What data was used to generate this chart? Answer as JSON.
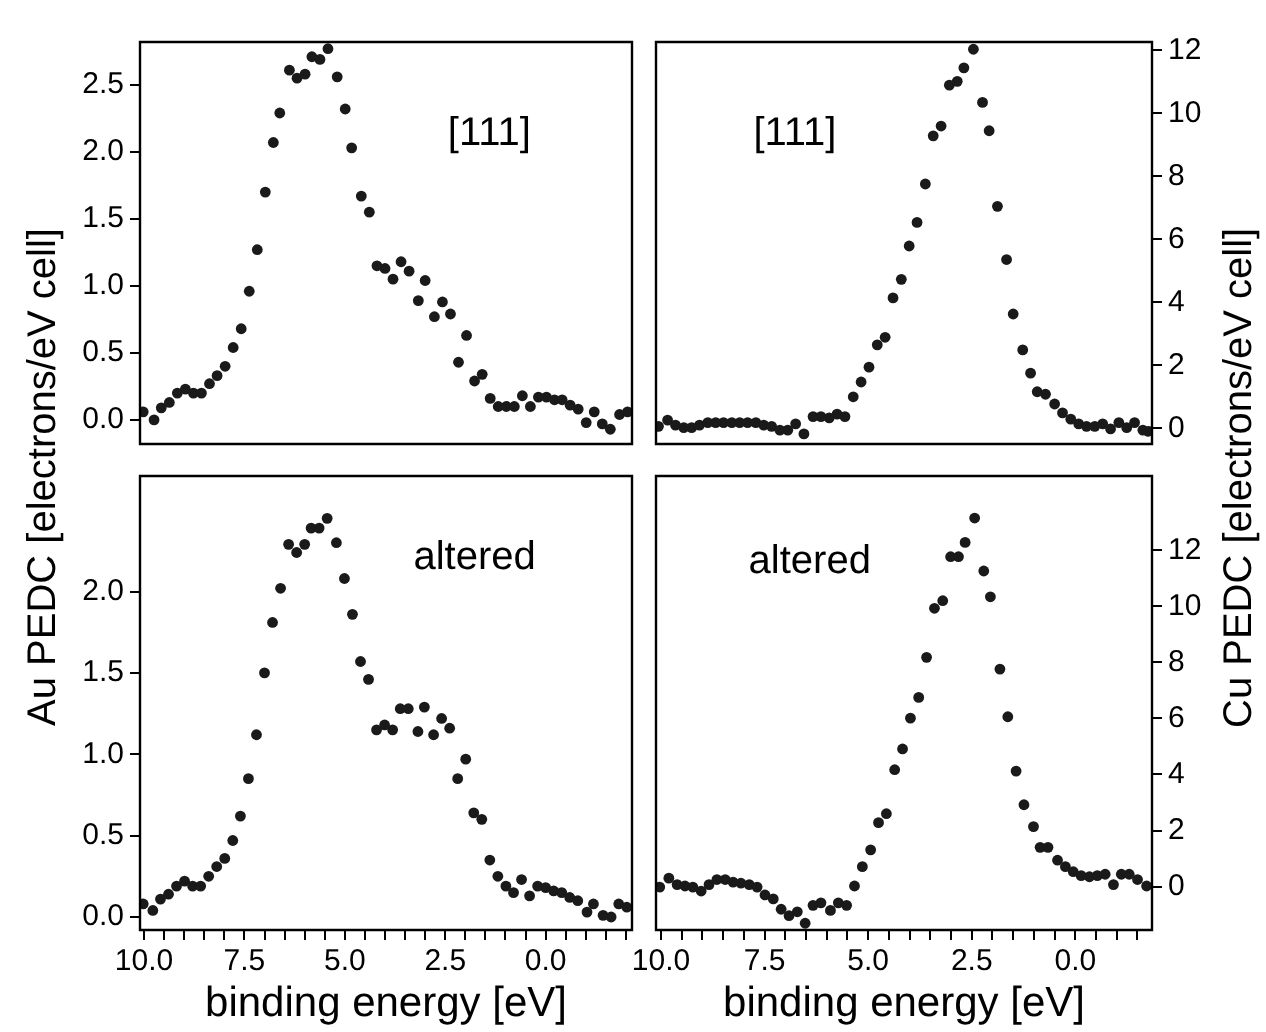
{
  "chart_data": [
    {
      "type": "scatter",
      "ylabel": "Au PEDC [electrons/eV cell]",
      "annotations": [
        "[111]"
      ],
      "xlim": [
        10.1,
        -2.15
      ],
      "ylim": [
        -0.18,
        2.82
      ],
      "yticks": [
        {
          "value": 0,
          "label": "0.0"
        },
        {
          "value": 0.5,
          "label": "0.5"
        },
        {
          "value": 1,
          "label": "1.0"
        },
        {
          "value": 1.5,
          "label": "1.5"
        },
        {
          "value": 2,
          "label": "2.0"
        },
        {
          "value": 2.5,
          "label": "2.5"
        }
      ],
      "tick_labels": "y",
      "marker": "circle",
      "series": [
        {
          "color": "#1a1a1a",
          "x": [
            10.02,
            9.75,
            9.57,
            9.37,
            9.17,
            8.97,
            8.77,
            8.57,
            8.37,
            8.18,
            7.98,
            7.78,
            7.58,
            7.38,
            7.18,
            6.98,
            6.78,
            6.62,
            6.38,
            6.19,
            5.99,
            5.82,
            5.62,
            5.42,
            5.19,
            4.99,
            4.83,
            4.59,
            4.39,
            4.2,
            4.0,
            3.8,
            3.6,
            3.4,
            3.17,
            3.0,
            2.77,
            2.57,
            2.37,
            2.17,
            1.97,
            1.77,
            1.58,
            1.38,
            1.18,
            0.98,
            0.78,
            0.58,
            0.38,
            0.18,
            -0.02,
            -0.22,
            -0.41,
            -0.61,
            -0.81,
            -1.01,
            -1.21,
            -1.41,
            -1.61,
            -1.84,
            -2.04
          ],
          "values": [
            0.06,
            0.0,
            0.09,
            0.13,
            0.2,
            0.23,
            0.2,
            0.2,
            0.27,
            0.33,
            0.4,
            0.54,
            0.68,
            0.96,
            1.27,
            1.7,
            2.07,
            2.29,
            2.61,
            2.55,
            2.58,
            2.71,
            2.69,
            2.77,
            2.56,
            2.32,
            2.03,
            1.67,
            1.55,
            1.15,
            1.13,
            1.05,
            1.18,
            1.11,
            0.89,
            1.04,
            0.77,
            0.88,
            0.79,
            0.43,
            0.63,
            0.29,
            0.34,
            0.16,
            0.1,
            0.1,
            0.1,
            0.18,
            0.1,
            0.17,
            0.17,
            0.15,
            0.15,
            0.11,
            0.08,
            -0.02,
            0.06,
            -0.03,
            -0.07,
            0.04,
            0.06
          ]
        }
      ]
    },
    {
      "type": "scatter",
      "ylabel": "Cu PEDC [electrons/eV cell]",
      "annotations": [
        "[111]"
      ],
      "xlim": [
        10.12,
        -1.85
      ],
      "ylim": [
        -0.5,
        12.27
      ],
      "yticks": [
        0,
        2,
        4,
        6,
        8,
        10,
        12
      ],
      "tick_labels": "y",
      "marker": "circle",
      "series": [
        {
          "color": "#1a1a1a",
          "x": [
            10.06,
            9.84,
            9.65,
            9.45,
            9.26,
            9.07,
            8.87,
            8.68,
            8.49,
            8.29,
            8.1,
            7.91,
            7.71,
            7.52,
            7.33,
            7.13,
            6.94,
            6.75,
            6.55,
            6.33,
            6.14,
            5.94,
            5.75,
            5.56,
            5.36,
            5.17,
            4.98,
            4.78,
            4.59,
            4.4,
            4.2,
            4.01,
            3.82,
            3.62,
            3.43,
            3.24,
            3.04,
            2.85,
            2.69,
            2.46,
            2.24,
            2.08,
            1.88,
            1.66,
            1.5,
            1.27,
            1.08,
            0.92,
            0.72,
            0.5,
            0.31,
            0.11,
            -0.08,
            -0.27,
            -0.47,
            -0.66,
            -0.85,
            -1.05,
            -1.24,
            -1.43,
            -1.63,
            -1.76
          ],
          "values": [
            0.06,
            0.26,
            0.1,
            0.02,
            0.02,
            0.1,
            0.18,
            0.18,
            0.18,
            0.18,
            0.18,
            0.18,
            0.18,
            0.1,
            0.06,
            -0.06,
            -0.06,
            0.14,
            -0.18,
            0.37,
            0.37,
            0.33,
            0.45,
            0.37,
            1.0,
            1.47,
            1.94,
            2.65,
            2.89,
            4.14,
            4.73,
            5.79,
            6.54,
            7.76,
            9.29,
            9.6,
            10.9,
            11.02,
            11.45,
            12.04,
            10.35,
            9.45,
            7.05,
            5.36,
            3.63,
            2.49,
            1.75,
            1.16,
            1.08,
            0.77,
            0.49,
            0.29,
            0.14,
            0.06,
            0.06,
            0.14,
            -0.02,
            0.18,
            0.02,
            0.18,
            -0.06,
            -0.1
          ]
        }
      ]
    },
    {
      "type": "scatter",
      "xlabel": "binding energy [eV]",
      "annotations": [
        "altered"
      ],
      "xlim": [
        10.1,
        -2.15
      ],
      "xticks": [
        {
          "value": 10,
          "label": "10.0"
        },
        {
          "value": 9.5,
          "label": null
        },
        {
          "value": 9,
          "label": null
        },
        {
          "value": 8.5,
          "label": null
        },
        {
          "value": 8,
          "label": null
        },
        {
          "value": 7.5,
          "label": "7.5"
        },
        {
          "value": 7,
          "label": null
        },
        {
          "value": 6.5,
          "label": null
        },
        {
          "value": 6,
          "label": null
        },
        {
          "value": 5.5,
          "label": null
        },
        {
          "value": 5,
          "label": "5.0"
        },
        {
          "value": 4.5,
          "label": null
        },
        {
          "value": 4,
          "label": null
        },
        {
          "value": 3.5,
          "label": null
        },
        {
          "value": 3,
          "label": null
        },
        {
          "value": 2.5,
          "label": "2.5"
        },
        {
          "value": 2,
          "label": null
        },
        {
          "value": 1.5,
          "label": null
        },
        {
          "value": 1,
          "label": null
        },
        {
          "value": 0.5,
          "label": null
        },
        {
          "value": 0,
          "label": "0.0"
        },
        {
          "value": -0.5,
          "label": null
        },
        {
          "value": -1,
          "label": null
        },
        {
          "value": -1.5,
          "label": null
        },
        {
          "value": -2,
          "label": null
        }
      ],
      "ylim": [
        -0.08,
        2.71
      ],
      "yticks": [
        {
          "value": 0,
          "label": "0.0"
        },
        {
          "value": 0.5,
          "label": "0.5"
        },
        {
          "value": 1,
          "label": "1.0"
        },
        {
          "value": 1.5,
          "label": "1.5"
        },
        {
          "value": 2,
          "label": "2.0"
        }
      ],
      "marker": "circle",
      "series": [
        {
          "color": "#1a1a1a",
          "x": [
            10.02,
            9.78,
            9.59,
            9.39,
            9.19,
            8.99,
            8.79,
            8.59,
            8.39,
            8.19,
            7.99,
            7.79,
            7.6,
            7.4,
            7.2,
            7.0,
            6.8,
            6.6,
            6.4,
            6.2,
            6.0,
            5.84,
            5.64,
            5.44,
            5.21,
            5.01,
            4.81,
            4.61,
            4.41,
            4.21,
            4.01,
            3.81,
            3.62,
            3.42,
            3.18,
            3.02,
            2.79,
            2.59,
            2.39,
            2.19,
            1.99,
            1.79,
            1.59,
            1.39,
            1.19,
            0.99,
            0.8,
            0.6,
            0.4,
            0.2,
            0.0,
            -0.2,
            -0.4,
            -0.6,
            -0.8,
            -1.03,
            -1.19,
            -1.43,
            -1.63,
            -1.82,
            -2.02
          ],
          "values": [
            0.08,
            0.04,
            0.11,
            0.14,
            0.19,
            0.22,
            0.19,
            0.19,
            0.25,
            0.31,
            0.36,
            0.47,
            0.62,
            0.85,
            1.12,
            1.5,
            1.81,
            2.02,
            2.29,
            2.24,
            2.29,
            2.39,
            2.39,
            2.45,
            2.3,
            2.08,
            1.86,
            1.57,
            1.46,
            1.15,
            1.18,
            1.15,
            1.28,
            1.28,
            1.14,
            1.29,
            1.12,
            1.22,
            1.16,
            0.85,
            0.97,
            0.64,
            0.6,
            0.35,
            0.25,
            0.19,
            0.15,
            0.23,
            0.13,
            0.19,
            0.18,
            0.16,
            0.15,
            0.12,
            0.1,
            0.03,
            0.08,
            0.01,
            0.0,
            0.08,
            0.06
          ]
        }
      ]
    },
    {
      "type": "scatter",
      "xlabel": "binding energy [eV]",
      "annotations": [
        "altered"
      ],
      "xlim": [
        10.12,
        -1.85
      ],
      "xticks": [
        {
          "value": 10,
          "label": "10.0"
        },
        {
          "value": 9.5,
          "label": null
        },
        {
          "value": 9,
          "label": null
        },
        {
          "value": 8.5,
          "label": null
        },
        {
          "value": 8,
          "label": null
        },
        {
          "value": 7.5,
          "label": "7.5"
        },
        {
          "value": 7,
          "label": null
        },
        {
          "value": 6.5,
          "label": null
        },
        {
          "value": 6,
          "label": null
        },
        {
          "value": 5.5,
          "label": null
        },
        {
          "value": 5,
          "label": "5.0"
        },
        {
          "value": 4.5,
          "label": null
        },
        {
          "value": 4,
          "label": null
        },
        {
          "value": 3.5,
          "label": null
        },
        {
          "value": 3,
          "label": null
        },
        {
          "value": 2.5,
          "label": "2.5"
        },
        {
          "value": 2,
          "label": null
        },
        {
          "value": 1.5,
          "label": null
        },
        {
          "value": 1,
          "label": null
        },
        {
          "value": 0.5,
          "label": null
        },
        {
          "value": 0,
          "label": "0.0"
        },
        {
          "value": -0.5,
          "label": null
        },
        {
          "value": -1,
          "label": null
        },
        {
          "value": -1.5,
          "label": null
        }
      ],
      "ylim": [
        -1.55,
        14.65
      ],
      "yticks": [
        0,
        2,
        4,
        6,
        8,
        10,
        12
      ],
      "marker": "circle",
      "series": [
        {
          "color": "#1a1a1a",
          "x": [
            10.03,
            9.81,
            9.61,
            9.42,
            9.23,
            9.03,
            8.84,
            8.65,
            8.45,
            8.26,
            8.07,
            7.87,
            7.68,
            7.49,
            7.29,
            7.1,
            6.91,
            6.71,
            6.52,
            6.33,
            6.14,
            5.91,
            5.72,
            5.52,
            5.33,
            5.14,
            4.94,
            4.75,
            4.56,
            4.36,
            4.17,
            3.98,
            3.78,
            3.59,
            3.4,
            3.2,
            3.01,
            2.82,
            2.66,
            2.43,
            2.21,
            2.05,
            1.82,
            1.63,
            1.43,
            1.24,
            1.01,
            0.85,
            0.66,
            0.43,
            0.24,
            0.05,
            -0.14,
            -0.34,
            -0.53,
            -0.72,
            -0.92,
            -1.11,
            -1.3,
            -1.5,
            -1.72
          ],
          "values": [
            -0.02,
            0.3,
            0.07,
            0.02,
            -0.02,
            -0.16,
            0.07,
            0.25,
            0.25,
            0.16,
            0.12,
            0.07,
            -0.02,
            -0.3,
            -0.44,
            -0.81,
            -1.04,
            -0.9,
            -1.31,
            -0.67,
            -0.58,
            -0.85,
            -0.58,
            -0.67,
            0.02,
            0.71,
            1.31,
            2.28,
            2.6,
            4.17,
            4.91,
            6.01,
            6.75,
            8.18,
            9.93,
            10.2,
            11.77,
            11.77,
            12.28,
            13.15,
            11.26,
            10.34,
            7.76,
            6.06,
            4.12,
            2.92,
            2.14,
            1.4,
            1.4,
            0.94,
            0.71,
            0.53,
            0.39,
            0.35,
            0.39,
            0.44,
            0.07,
            0.44,
            0.44,
            0.25,
            0.02
          ]
        }
      ]
    }
  ]
}
